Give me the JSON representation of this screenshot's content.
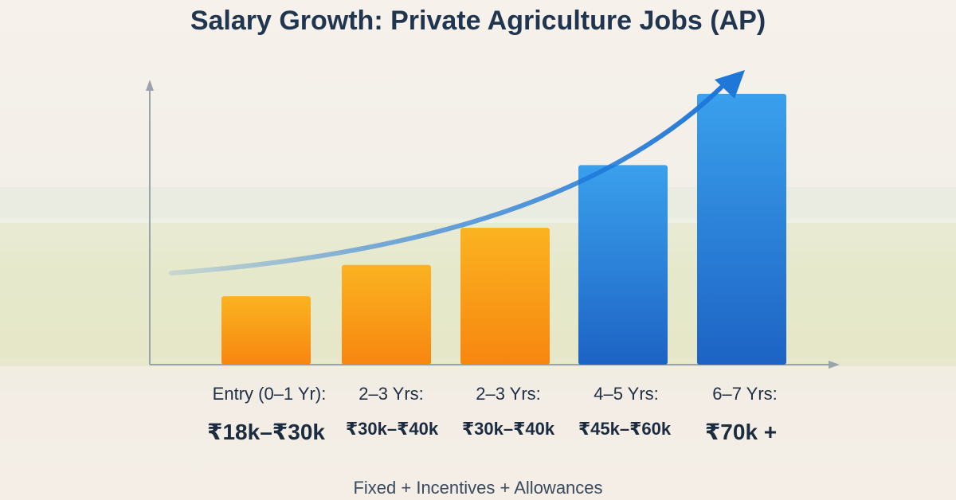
{
  "chart_data": {
    "type": "bar",
    "title": "Salary Growth: Private Agriculture Jobs (AP)",
    "categories": [
      "Entry (0–1 Yr):",
      "2–3 Yrs:",
      "2–3 Yrs:",
      "4–5 Yrs:",
      "6–7 Yrs:"
    ],
    "value_labels": [
      "₹18k–₹30k",
      "₹30k–₹40k",
      "₹30k–₹40k",
      "₹45k–₹60k",
      "₹70k +"
    ],
    "values": [
      24,
      35,
      48,
      70,
      95
    ],
    "bar_colors": [
      "#f98a12",
      "#f99418",
      "#f8a91e",
      "#2f86dc",
      "#1f78d8"
    ],
    "ylim": [
      0,
      100
    ],
    "grid": false,
    "xlabel": "",
    "ylabel": ""
  },
  "footer": "Fixed + Incentives + Allowances",
  "colors": {
    "title": "#1f3550",
    "trend_arrow": "#1f78d8",
    "axis": "#9aa3ad"
  }
}
